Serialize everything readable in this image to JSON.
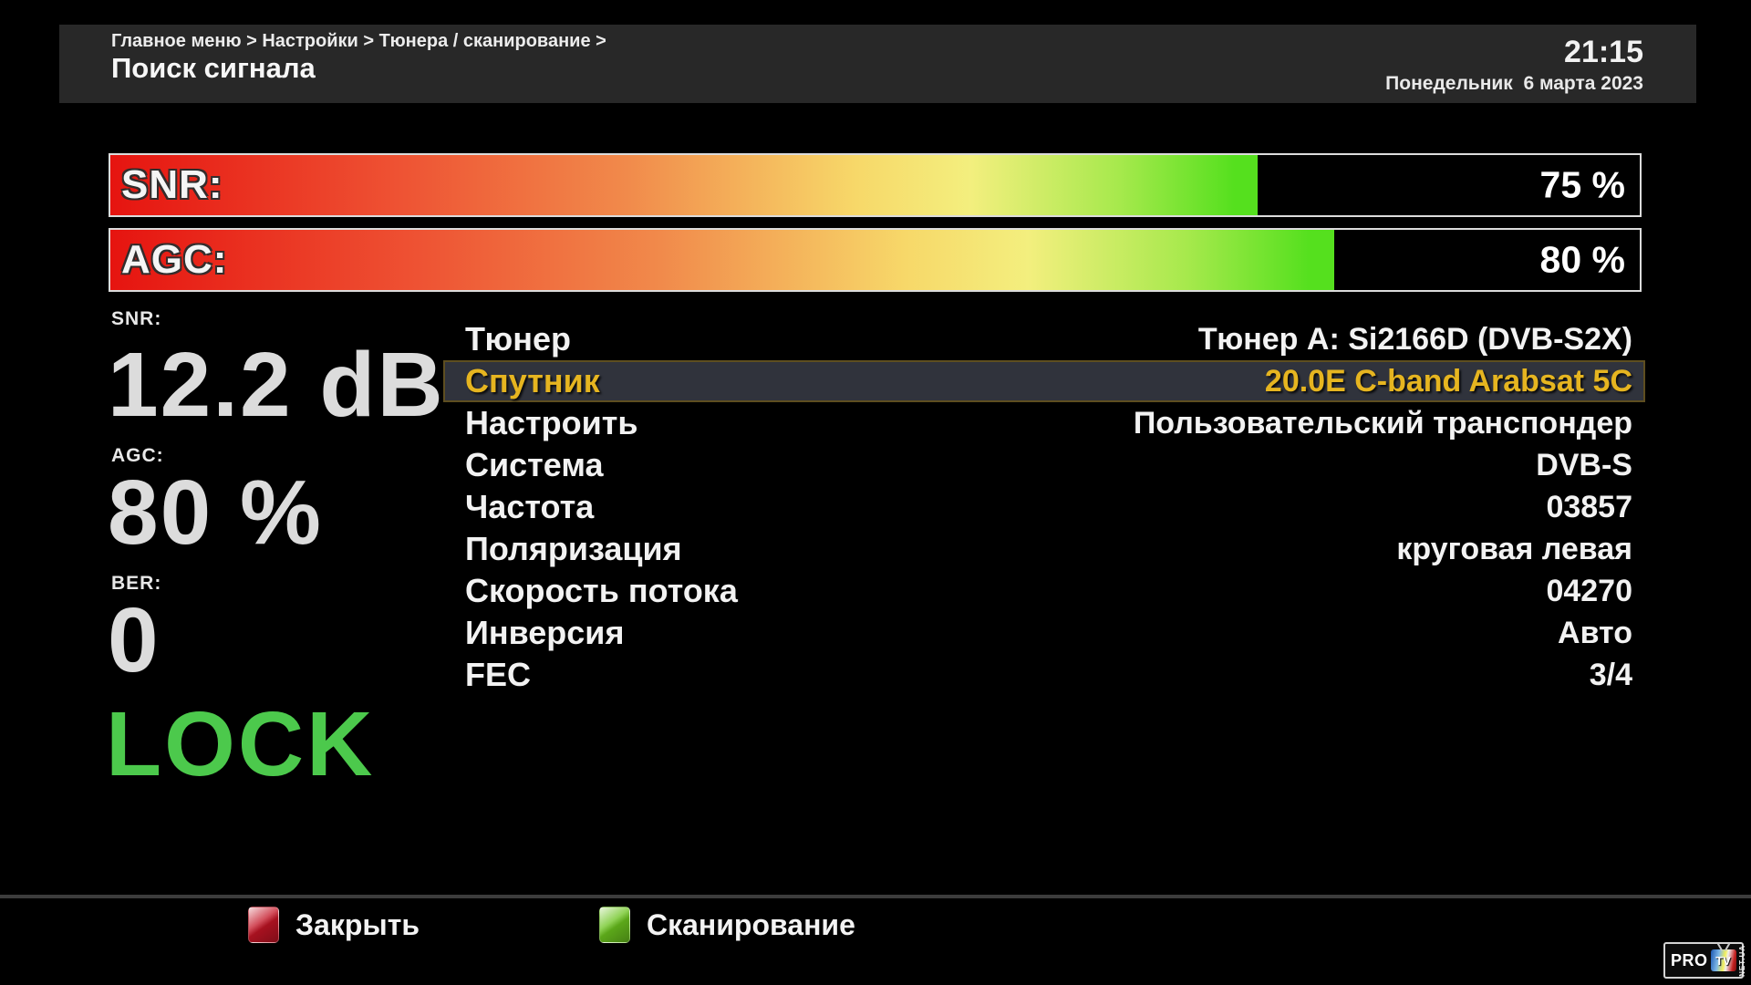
{
  "header": {
    "breadcrumb": "Главное меню > Настройки > Тюнера / сканирование >",
    "title": "Поиск сигнала",
    "time": "21:15",
    "date": "Понедельник  6 марта 2023"
  },
  "signal_bars": [
    {
      "label": "SNR:",
      "percent": 75,
      "percent_label": "75 %"
    },
    {
      "label": "AGC:",
      "percent": 80,
      "percent_label": "80 %"
    }
  ],
  "metrics": {
    "snr": {
      "label": "SNR:",
      "value": "12.2 dB"
    },
    "agc": {
      "label": "AGC:",
      "value": "80 %"
    },
    "ber": {
      "label": "BER:",
      "value": "0"
    },
    "lock": "LOCK"
  },
  "settings": {
    "selected_index": 1,
    "rows": [
      {
        "label": "Тюнер",
        "value": "Тюнер A: Si2166D (DVB-S2X)"
      },
      {
        "label": "Спутник",
        "value": "20.0E C-band Arabsat 5C"
      },
      {
        "label": "Настроить",
        "value": "Пользовательский транспондер"
      },
      {
        "label": "Система",
        "value": "DVB-S"
      },
      {
        "label": "Частота",
        "value": "03857"
      },
      {
        "label": "Поляризация",
        "value": "круговая левая"
      },
      {
        "label": "Скорость потока",
        "value": "04270"
      },
      {
        "label": "Инверсия",
        "value": "Авто"
      },
      {
        "label": "FEC",
        "value": "3/4"
      }
    ]
  },
  "footer": {
    "close_label": "Закрыть",
    "scan_label": "Сканирование"
  },
  "logo": {
    "pro": "PRO",
    "tv": "TV",
    "net": "NET.UA"
  },
  "colors": {
    "lock_green": "#4cc94c",
    "selected_text": "#e6b520",
    "selected_bg": "#30333c",
    "key_red": "#c41425",
    "key_green": "#6bc41e",
    "header_bg": "#282828"
  }
}
